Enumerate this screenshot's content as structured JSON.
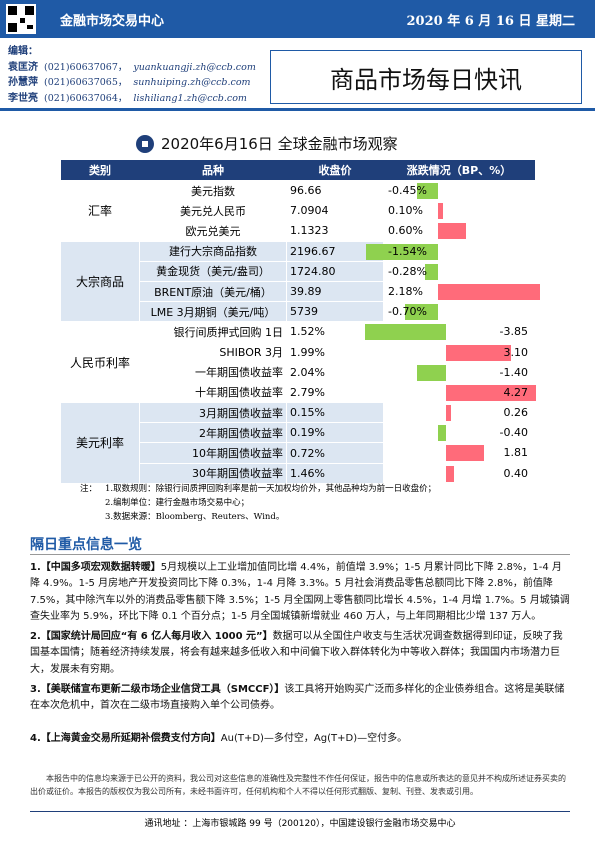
{
  "header": {
    "org": "金融市场交易中心",
    "date": "2020 年 6 月 16 日  星期二",
    "title": "商品市场每日快讯"
  },
  "editors": {
    "label": "编辑：",
    "people": [
      {
        "name": "袁匡济",
        "phone": "(021)60637067，",
        "email": "yuankuangji.zh@ccb.com"
      },
      {
        "name": "孙慧萍",
        "phone": "(021)60637065，",
        "email": "sunhuiping.zh@ccb.com"
      },
      {
        "name": "李世亮",
        "phone": "(021)60637064，",
        "email": "lishiliang1.zh@ccb.com"
      }
    ]
  },
  "table": {
    "title": "2020年6月16日  全球金融市场观察",
    "headers": [
      "类别",
      "品种",
      "收盘价",
      "涨跌情况（BP、%）"
    ],
    "sections": [
      {
        "category": "汇率",
        "rows": [
          {
            "name": "美元指数",
            "close": "96.66",
            "change": {
              "value": -0.45,
              "label": "-0.45%"
            }
          },
          {
            "name": "美元兑人民币",
            "close": "7.0904",
            "change": {
              "value": 0.1,
              "label": "0.10%"
            }
          },
          {
            "name": "欧元兑美元",
            "close": "1.1323",
            "change": {
              "value": 0.6,
              "label": "0.60%"
            }
          }
        ]
      },
      {
        "category": "大宗商品",
        "rows": [
          {
            "name": "建行大宗商品指数",
            "close": "2196.67",
            "change": {
              "value": -1.54,
              "label": "-1.54%"
            }
          },
          {
            "name": "黄金现货（美元/盎司）",
            "close": "1724.80",
            "change": {
              "value": -0.28,
              "label": "-0.28%"
            }
          },
          {
            "name": "BRENT原油（美元/桶）",
            "close": "39.89",
            "change": {
              "value": 2.18,
              "label": "2.18%"
            }
          },
          {
            "name": "LME 3月期铜（美元/吨）",
            "close": "5739",
            "change": {
              "value": -0.7,
              "label": "-0.70%"
            }
          }
        ]
      },
      {
        "category": "人民币利率",
        "rows": [
          {
            "name": "银行间质押式回购 1日",
            "close": "1.52%",
            "change": {
              "value": -3.85,
              "label": "-3.85"
            }
          },
          {
            "name": "SHIBOR 3月",
            "close": "1.99%",
            "change": {
              "value": 3.1,
              "label": "3.10"
            }
          },
          {
            "name": "一年期国债收益率",
            "close": "2.04%",
            "change": {
              "value": -1.4,
              "label": "-1.40"
            }
          },
          {
            "name": "十年期国债收益率",
            "close": "2.79%",
            "change": {
              "value": 4.27,
              "label": "4.27"
            }
          }
        ]
      },
      {
        "category": "美元利率",
        "rows": [
          {
            "name": "3月期国债收益率",
            "close": "0.15%",
            "change": {
              "value": 0.26,
              "label": "0.26"
            }
          },
          {
            "name": "2年期国债收益率",
            "close": "0.19%",
            "change": {
              "value": -0.4,
              "label": "-0.40"
            }
          },
          {
            "name": "10年期国债收益率",
            "close": "0.72%",
            "change": {
              "value": 1.81,
              "label": "1.81"
            }
          },
          {
            "name": "30年期国债收益率",
            "close": "1.46%",
            "change": {
              "value": 0.4,
              "label": "0.40"
            }
          }
        ]
      }
    ]
  },
  "notes": {
    "label": "注：",
    "items": [
      "1.取数规则：除银行间质押回购利率是前一天加权均价外，其他品种均为前一日收盘价；",
      "2.编制单位：建行金融市场交易中心；",
      "3.数据来源：Bloomberg、Reuters、Wind。"
    ]
  },
  "info": {
    "title": "隔日重点信息一览",
    "items": [
      {
        "lead": "1.【中国多项宏观数据转暖】",
        "text": "5月规模以上工业增加值同比增 4.4%，前值增 3.9%；1-5 月累计同比下降 2.8%，1-4 月降 4.9%。1-5 月房地产开发投资同比下降 0.3%，1-4 月降 3.3%。5 月社会消费品零售总额同比下降 2.8%，前值降 7.5%，其中除汽车以外的消费品零售额下降 3.5%；1-5 月全国网上零售额同比增长 4.5%，1-4 月增 1.7%。5 月城镇调查失业率为 5.9%，环比下降 0.1 个百分点；1-5 月全国城镇新增就业 460 万人，与上年同期相比少增 137 万人。"
      },
      {
        "lead": "2.【国家统计局回应“有 6 亿人每月收入 1000 元”】",
        "text": "数据可以从全国住户收支与生活状况调查数据得到印证，反映了我国基本国情；随着经济持续发展，将会有越来越多低收入和中间偏下收入群体转化为中等收入群体；我国国内市场潜力巨大，发展未有穷期。"
      },
      {
        "lead": "3.【美联储宣布更新二级市场企业信贷工具（SMCCF）】",
        "text": "该工具将开始购买广泛而多样化的企业债券组合。这将是美联储在本次危机中，首次在二级市场直接购入单个公司债券。"
      },
      {
        "lead": "4.【上海黄金交易所延期补偿费支付方向】",
        "text": "Au(T+D)—多付空，Ag(T+D)—空付多。"
      }
    ]
  },
  "disclaimer": "本报告中的信息均来源于已公开的资料，我公司对这些信息的准确性及完整性不作任何保证，报告中的信息或所表达的意见并不构成所述证券买卖的出价或征价。本报告的版权仅为我公司所有，未经书面许可，任何机构和个人不得以任何形式翻版、复制、刊登、发表或引用。",
  "footer": "通讯地址 ：上海市银城路 99 号（200120），中国建设银行金融市场交易中心"
}
